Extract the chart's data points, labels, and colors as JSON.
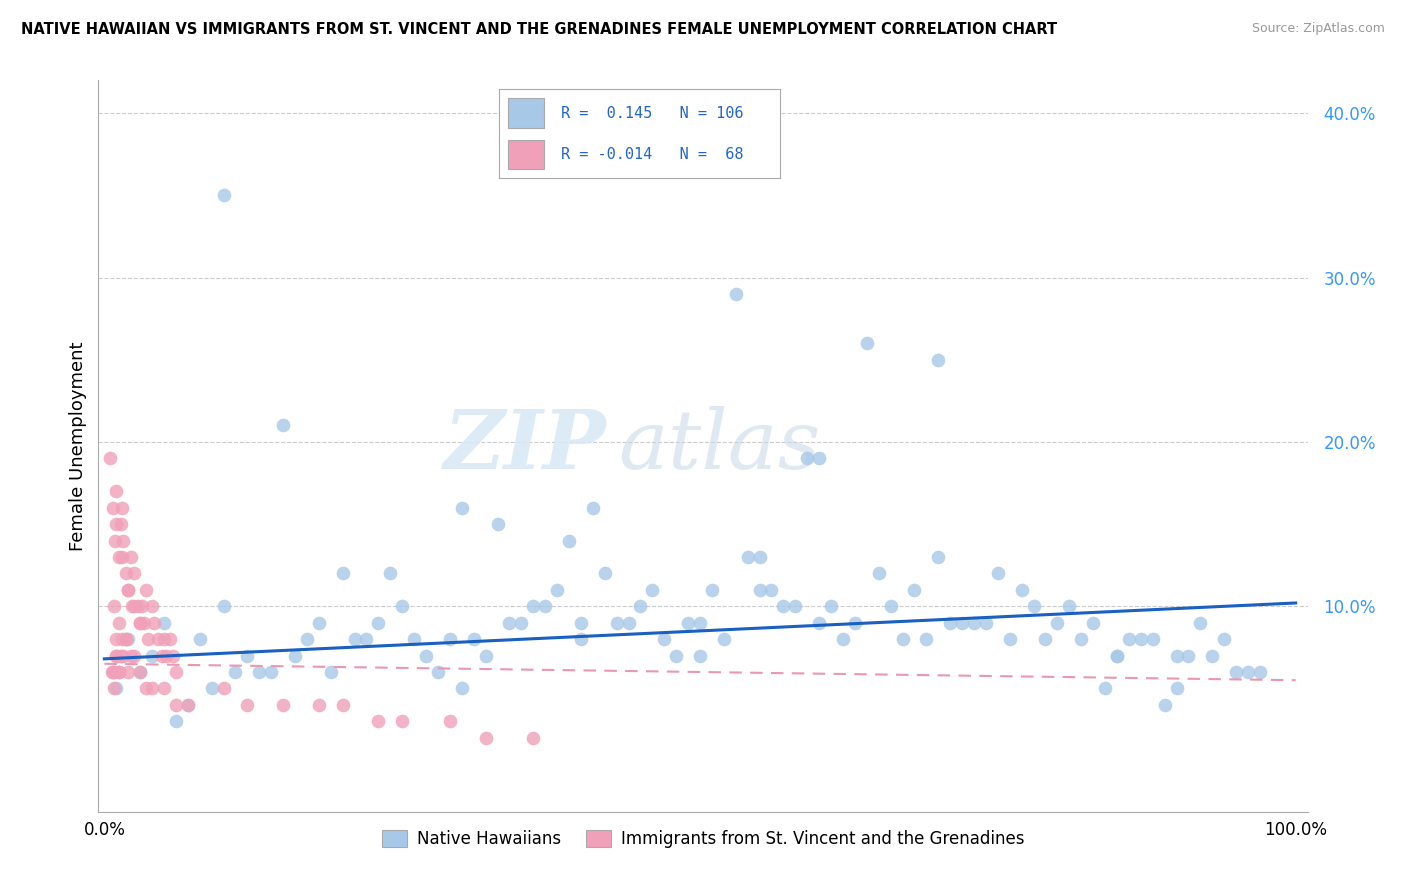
{
  "title": "NATIVE HAWAIIAN VS IMMIGRANTS FROM ST. VINCENT AND THE GRENADINES FEMALE UNEMPLOYMENT CORRELATION CHART",
  "source": "Source: ZipAtlas.com",
  "ylabel": "Female Unemployment",
  "ylim": [
    -0.025,
    0.42
  ],
  "xlim": [
    -0.005,
    1.01
  ],
  "blue_R": 0.145,
  "blue_N": 106,
  "pink_R": -0.014,
  "pink_N": 68,
  "blue_color": "#A8C8E8",
  "pink_color": "#F0A0B8",
  "blue_line_color": "#1a60c0",
  "pink_line_color": "#E898B0",
  "watermark_zip": "ZIP",
  "watermark_atlas": "atlas",
  "legend_label_blue": "Native Hawaiians",
  "legend_label_pink": "Immigrants from St. Vincent and the Grenadines",
  "blue_x": [
    0.02,
    0.03,
    0.01,
    0.04,
    0.05,
    0.08,
    0.1,
    0.12,
    0.15,
    0.18,
    0.2,
    0.22,
    0.25,
    0.28,
    0.3,
    0.32,
    0.35,
    0.38,
    0.4,
    0.42,
    0.45,
    0.48,
    0.5,
    0.52,
    0.55,
    0.58,
    0.6,
    0.62,
    0.65,
    0.68,
    0.7,
    0.72,
    0.75,
    0.78,
    0.8,
    0.82,
    0.85,
    0.88,
    0.9,
    0.92,
    0.95,
    0.33,
    0.07,
    0.13,
    0.17,
    0.26,
    0.37,
    0.43,
    0.27,
    0.19,
    0.31,
    0.46,
    0.54,
    0.61,
    0.56,
    0.67,
    0.73,
    0.81,
    0.86,
    0.93,
    0.06,
    0.09,
    0.11,
    0.16,
    0.23,
    0.29,
    0.36,
    0.44,
    0.51,
    0.57,
    0.63,
    0.69,
    0.77,
    0.83,
    0.87,
    0.91,
    0.96,
    0.14,
    0.21,
    0.34,
    0.47,
    0.53,
    0.59,
    0.66,
    0.74,
    0.79,
    0.84,
    0.89,
    0.97,
    0.24,
    0.39,
    0.49,
    0.64,
    0.71,
    0.76,
    0.85,
    0.9,
    0.94,
    0.41,
    0.55,
    0.3,
    0.7,
    0.6,
    0.5,
    0.4,
    0.1
  ],
  "blue_y": [
    0.08,
    0.06,
    0.05,
    0.07,
    0.09,
    0.08,
    0.1,
    0.07,
    0.21,
    0.09,
    0.12,
    0.08,
    0.1,
    0.06,
    0.16,
    0.07,
    0.09,
    0.11,
    0.08,
    0.12,
    0.1,
    0.07,
    0.09,
    0.08,
    0.11,
    0.1,
    0.09,
    0.08,
    0.12,
    0.11,
    0.13,
    0.09,
    0.12,
    0.1,
    0.09,
    0.08,
    0.07,
    0.08,
    0.07,
    0.09,
    0.06,
    0.15,
    0.04,
    0.06,
    0.08,
    0.08,
    0.1,
    0.09,
    0.07,
    0.06,
    0.08,
    0.11,
    0.13,
    0.1,
    0.11,
    0.08,
    0.09,
    0.1,
    0.08,
    0.07,
    0.03,
    0.05,
    0.06,
    0.07,
    0.09,
    0.08,
    0.1,
    0.09,
    0.11,
    0.1,
    0.09,
    0.08,
    0.11,
    0.09,
    0.08,
    0.07,
    0.06,
    0.06,
    0.08,
    0.09,
    0.08,
    0.29,
    0.19,
    0.1,
    0.09,
    0.08,
    0.05,
    0.04,
    0.06,
    0.12,
    0.14,
    0.09,
    0.26,
    0.09,
    0.08,
    0.07,
    0.05,
    0.08,
    0.16,
    0.13,
    0.05,
    0.25,
    0.19,
    0.07,
    0.09,
    0.35
  ],
  "pink_x": [
    0.005,
    0.007,
    0.009,
    0.01,
    0.012,
    0.014,
    0.015,
    0.016,
    0.018,
    0.02,
    0.022,
    0.023,
    0.025,
    0.028,
    0.03,
    0.032,
    0.033,
    0.035,
    0.037,
    0.04,
    0.042,
    0.045,
    0.048,
    0.05,
    0.052,
    0.055,
    0.058,
    0.06,
    0.01,
    0.015,
    0.02,
    0.008,
    0.012,
    0.018,
    0.025,
    0.03,
    0.01,
    0.015,
    0.008,
    0.01,
    0.006,
    0.012,
    0.018,
    0.022,
    0.014,
    0.01,
    0.007,
    0.016,
    0.02,
    0.025,
    0.008,
    0.012,
    0.03,
    0.035,
    0.04,
    0.05,
    0.06,
    0.07,
    0.1,
    0.12,
    0.15,
    0.18,
    0.2,
    0.23,
    0.25,
    0.29,
    0.32,
    0.36
  ],
  "pink_y": [
    0.19,
    0.16,
    0.14,
    0.17,
    0.13,
    0.15,
    0.16,
    0.14,
    0.12,
    0.11,
    0.13,
    0.1,
    0.12,
    0.1,
    0.09,
    0.1,
    0.09,
    0.11,
    0.08,
    0.1,
    0.09,
    0.08,
    0.07,
    0.08,
    0.07,
    0.08,
    0.07,
    0.06,
    0.15,
    0.13,
    0.11,
    0.1,
    0.09,
    0.08,
    0.1,
    0.09,
    0.07,
    0.08,
    0.06,
    0.07,
    0.06,
    0.06,
    0.08,
    0.07,
    0.07,
    0.08,
    0.06,
    0.07,
    0.06,
    0.07,
    0.05,
    0.06,
    0.06,
    0.05,
    0.05,
    0.05,
    0.04,
    0.04,
    0.05,
    0.04,
    0.04,
    0.04,
    0.04,
    0.03,
    0.03,
    0.03,
    0.02,
    0.02
  ]
}
